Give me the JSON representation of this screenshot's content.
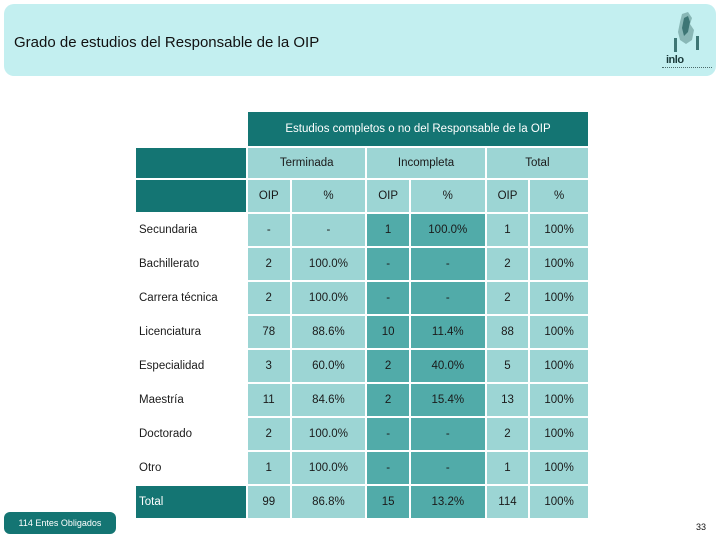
{
  "header": {
    "title": "Grado de estudios del Responsable de la OIP",
    "logo_text": "inlo"
  },
  "table": {
    "group_header": "Estudios completos o no del Responsable de la OIP",
    "subheaders": [
      "Terminada",
      "Incompleta",
      "Total"
    ],
    "columns": [
      "OIP",
      "%",
      "OIP",
      "%",
      "OIP",
      "%"
    ],
    "rows": [
      {
        "label": "Secundaria",
        "values": [
          "-",
          "-",
          "1",
          "100.0%",
          "1",
          "100%"
        ]
      },
      {
        "label": "Bachillerato",
        "values": [
          "2",
          "100.0%",
          "-",
          "-",
          "2",
          "100%"
        ]
      },
      {
        "label": "Carrera técnica",
        "values": [
          "2",
          "100.0%",
          "-",
          "-",
          "2",
          "100%"
        ]
      },
      {
        "label": "Licenciatura",
        "values": [
          "78",
          "88.6%",
          "10",
          "11.4%",
          "88",
          "100%"
        ]
      },
      {
        "label": "Especialidad",
        "values": [
          "3",
          "60.0%",
          "2",
          "40.0%",
          "5",
          "100%"
        ]
      },
      {
        "label": "Maestría",
        "values": [
          "11",
          "84.6%",
          "2",
          "15.4%",
          "13",
          "100%"
        ]
      },
      {
        "label": "Doctorado",
        "values": [
          "2",
          "100.0%",
          "-",
          "-",
          "2",
          "100%"
        ]
      },
      {
        "label": "Otro",
        "values": [
          "1",
          "100.0%",
          "-",
          "-",
          "1",
          "100%"
        ]
      },
      {
        "label": "Total",
        "values": [
          "99",
          "86.8%",
          "15",
          "13.2%",
          "114",
          "100%"
        ]
      }
    ]
  },
  "footer": {
    "entes_label": "114 Entes Obligados",
    "page_number": "33"
  },
  "colors": {
    "header_band": "#c3eff0",
    "dark_teal": "#147573",
    "light_teal": "#9cd5d4",
    "mid_teal": "#51aba9"
  }
}
